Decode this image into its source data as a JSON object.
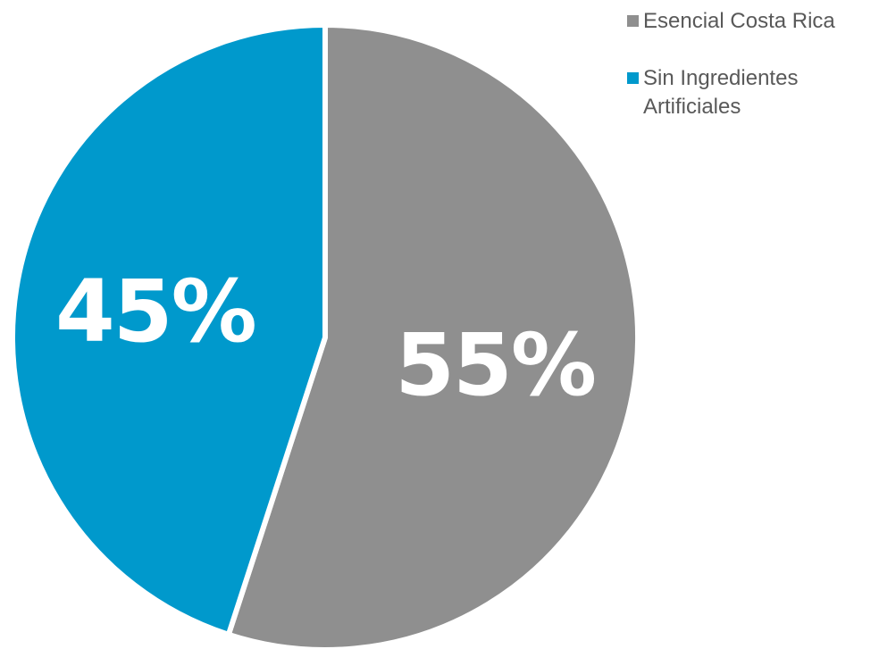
{
  "chart_data": {
    "type": "pie",
    "categories": [
      "Esencial Costa Rica",
      "Sin Ingredientes Artificiales"
    ],
    "values": [
      55,
      45
    ],
    "value_labels": [
      "55%",
      "45%"
    ],
    "colors": [
      "#8f8f8f",
      "#0099cc"
    ],
    "start_angle": "12 o'clock, clockwise",
    "legend_placement": "top-right"
  },
  "legend": {
    "items": [
      {
        "label": "Esencial Costa Rica",
        "color": "#8f8f8f"
      },
      {
        "label": "Sin Ingredientes Artificiales",
        "color": "#0099cc"
      }
    ]
  }
}
